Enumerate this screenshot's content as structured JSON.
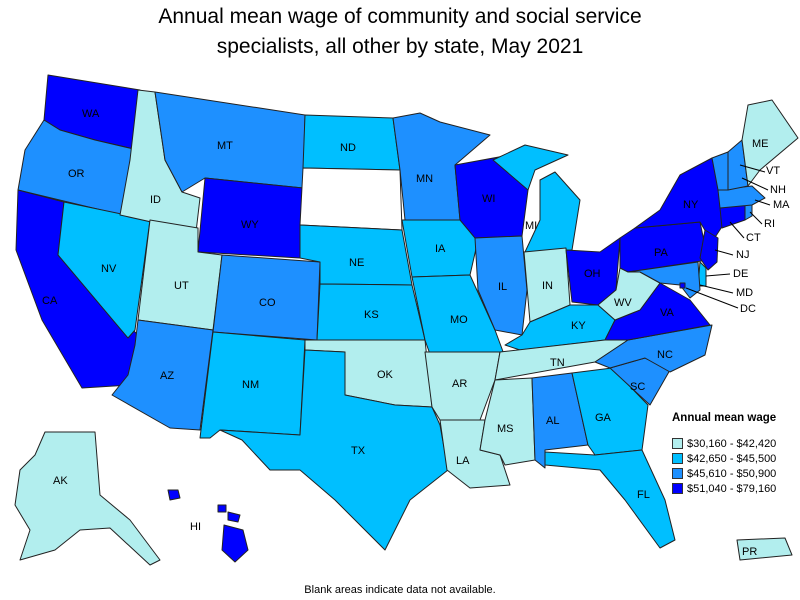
{
  "title_line1": "Annual mean wage of community and social service",
  "title_line2": "specialists, all other by state, May 2021",
  "legend": {
    "title": "Annual mean wage",
    "bins": [
      {
        "label": "$30,160 - $42,420",
        "color": "#b2eeee"
      },
      {
        "label": "$42,650 - $45,500",
        "color": "#00bfff"
      },
      {
        "label": "$45,610 - $50,900",
        "color": "#1e90ff"
      },
      {
        "label": "$51,040 - $79,160",
        "color": "#0000ff"
      }
    ]
  },
  "footnote": "Blank areas indicate data not available.",
  "states": {
    "WA": 4,
    "OR": 3,
    "CA": 4,
    "NV": 2,
    "ID": 1,
    "MT": 3,
    "WY": 4,
    "UT": 1,
    "AZ": 3,
    "CO": 3,
    "NM": 2,
    "ND": 2,
    "SD": 0,
    "NE": 2,
    "KS": 2,
    "OK": 1,
    "TX": 2,
    "MN": 3,
    "IA": 2,
    "MO": 2,
    "AR": 1,
    "LA": 1,
    "WI": 4,
    "IL": 3,
    "MI": 2,
    "IN": 1,
    "OH": 4,
    "KY": 2,
    "TN": 1,
    "MS": 1,
    "AL": 3,
    "GA": 2,
    "FL": 2,
    "SC": 3,
    "NC": 3,
    "VA": 4,
    "WV": 1,
    "PA": 4,
    "NY": 4,
    "VT": 3,
    "NH": 3,
    "ME": 1,
    "MA": 3,
    "RI": 3,
    "CT": 4,
    "NJ": 4,
    "DE": 2,
    "MD": 3,
    "DC": 4,
    "AK": 1,
    "HI": 4,
    "PR": 1
  },
  "map_labels": [
    "WA",
    "OR",
    "CA",
    "NV",
    "ID",
    "MT",
    "WY",
    "UT",
    "AZ",
    "CO",
    "NM",
    "ND",
    "NE",
    "KS",
    "OK",
    "TX",
    "MN",
    "IA",
    "MO",
    "AR",
    "LA",
    "WI",
    "IL",
    "MI",
    "IN",
    "OH",
    "KY",
    "TN",
    "MS",
    "AL",
    "GA",
    "FL",
    "SC",
    "NC",
    "VA",
    "WV",
    "PA",
    "NY",
    "VT",
    "NH",
    "ME",
    "MA",
    "RI",
    "CT",
    "NJ",
    "DE",
    "MD",
    "DC",
    "AK",
    "HI",
    "PR"
  ]
}
